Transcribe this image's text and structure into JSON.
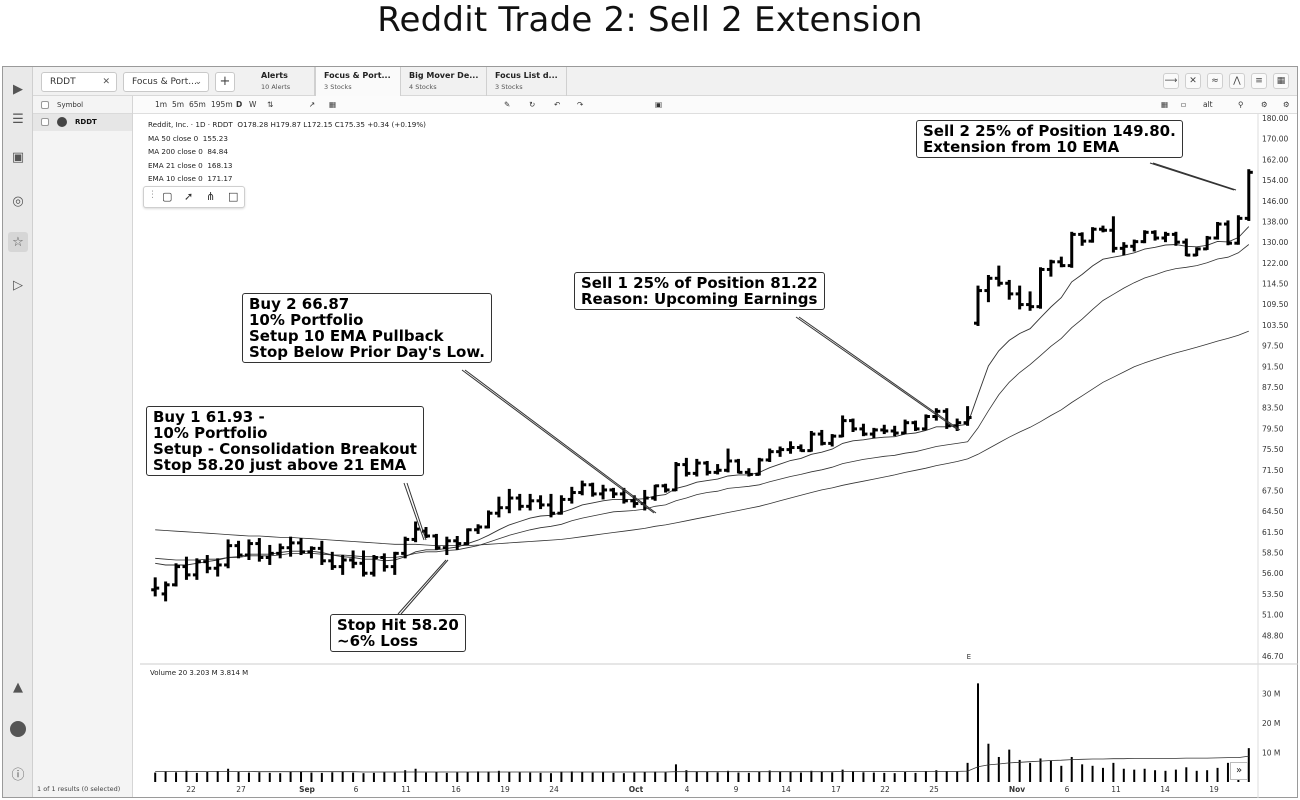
{
  "page_title": "Reddit Trade 2: Sell 2 Extension",
  "tabbar": {
    "symbol_box": "RDDT",
    "watchlist_select": "Focus & Port...",
    "add_label": "+",
    "tabs": [
      {
        "title": "Alerts",
        "sub": "10 Alerts"
      },
      {
        "title": "Focus & Port...",
        "sub": "3 Stocks"
      },
      {
        "title": "Big Mover De...",
        "sub": "4 Stocks"
      },
      {
        "title": "Focus List d...",
        "sub": "3 Stocks"
      }
    ]
  },
  "watchlist": {
    "header": "Symbol",
    "rows": [
      "RDDT"
    ],
    "footer": "1 of 1 results (0 selected)"
  },
  "toolbar": {
    "timeframes": [
      "1m",
      "5m",
      "65m",
      "195m",
      "D",
      "W"
    ],
    "alt_label": "alt"
  },
  "legend": {
    "title": "Reddit, Inc. · 1D · RDDT",
    "ohlc": "O178.28  H179.87  L172.15  C175.35  +0.34 (+0.19%)",
    "lines": [
      {
        "label": "MA 50 close 0",
        "value": "155.23"
      },
      {
        "label": "MA 200 close 0",
        "value": "84.84"
      },
      {
        "label": "EMA 21 close 0",
        "value": "168.13"
      },
      {
        "label": "EMA 10 close 0",
        "value": "171.17"
      }
    ],
    "volume": "Volume 20  3.203 M  3.814 M"
  },
  "annotations": {
    "buy1": [
      "Buy 1 61.93 -",
      "10% Portfolio",
      "Setup - Consolidation Breakout",
      "Stop 58.20 just above 21 EMA"
    ],
    "buy2": [
      "Buy 2 66.87",
      "10% Portfolio",
      "Setup 10 EMA Pullback",
      "Stop Below Prior Day's Low."
    ],
    "sell1": [
      "Sell 1 25% of Position 81.22",
      "Reason: Upcoming Earnings"
    ],
    "sell2": [
      "Sell 2 25% of Position 149.80.",
      "Extension from 10 EMA"
    ],
    "stop": [
      "Stop Hit 58.20",
      "~6% Loss"
    ]
  },
  "earnings_marker": "E",
  "chart_data": {
    "type": "bar",
    "price_axis_ticks": [
      "180.00",
      "170.00",
      "162.00",
      "154.00",
      "146.00",
      "138.00",
      "130.00",
      "122.00",
      "114.50",
      "109.50",
      "103.50",
      "97.50",
      "91.50",
      "87.50",
      "83.50",
      "79.50",
      "75.50",
      "71.50",
      "67.50",
      "64.50",
      "61.50",
      "58.50",
      "56.00",
      "53.50",
      "51.00",
      "48.80",
      "46.70"
    ],
    "volume_axis_ticks": [
      "30 M",
      "20 M",
      "10 M"
    ],
    "x_ticks": [
      "22",
      "27",
      "Sep",
      "6",
      "11",
      "16",
      "19",
      "24",
      "Oct",
      "4",
      "9",
      "14",
      "17",
      "22",
      "25",
      "Nov",
      "6",
      "11",
      "14",
      "19"
    ],
    "ohlc": [
      [
        54.0,
        55.5,
        53.2,
        54.2
      ],
      [
        53.5,
        55.0,
        52.6,
        54.6
      ],
      [
        54.6,
        57.2,
        54.4,
        56.8
      ],
      [
        56.8,
        58.0,
        55.2,
        55.8
      ],
      [
        55.8,
        57.8,
        55.2,
        57.4
      ],
      [
        57.4,
        58.2,
        56.0,
        56.6
      ],
      [
        56.6,
        57.8,
        55.6,
        57.0
      ],
      [
        57.0,
        60.4,
        56.6,
        59.5
      ],
      [
        59.5,
        60.2,
        57.8,
        58.2
      ],
      [
        58.2,
        60.4,
        57.6,
        59.8
      ],
      [
        59.8,
        60.6,
        57.4,
        57.9
      ],
      [
        57.9,
        59.6,
        57.0,
        58.4
      ],
      [
        58.4,
        59.8,
        57.8,
        59.2
      ],
      [
        59.2,
        60.8,
        58.0,
        59.9
      ],
      [
        59.9,
        60.6,
        58.2,
        58.6
      ],
      [
        58.6,
        59.4,
        57.8,
        59.1
      ],
      [
        59.1,
        60.2,
        57.0,
        57.5
      ],
      [
        57.5,
        58.6,
        56.4,
        56.8
      ],
      [
        56.8,
        58.2,
        55.8,
        57.6
      ],
      [
        57.6,
        58.8,
        56.6,
        57.2
      ],
      [
        57.2,
        58.8,
        55.6,
        56.0
      ],
      [
        56.0,
        58.2,
        55.6,
        57.9
      ],
      [
        57.9,
        58.4,
        56.2,
        56.8
      ],
      [
        56.8,
        58.6,
        55.8,
        58.4
      ],
      [
        58.4,
        60.8,
        57.8,
        60.4
      ],
      [
        60.4,
        63.0,
        60.0,
        61.9
      ],
      [
        61.6,
        62.2,
        60.6,
        60.9
      ],
      [
        60.9,
        61.2,
        58.9,
        59.2
      ],
      [
        59.2,
        60.8,
        58.2,
        60.2
      ],
      [
        60.2,
        60.9,
        58.9,
        59.8
      ],
      [
        59.8,
        62.0,
        59.6,
        61.8
      ],
      [
        61.8,
        62.6,
        61.2,
        62.2
      ],
      [
        62.2,
        64.6,
        62.0,
        64.2
      ],
      [
        64.2,
        66.6,
        63.6,
        65.0
      ],
      [
        65.0,
        67.8,
        64.2,
        66.4
      ],
      [
        66.4,
        67.0,
        64.6,
        65.2
      ],
      [
        65.2,
        67.0,
        64.6,
        66.0
      ],
      [
        66.0,
        66.8,
        64.8,
        65.4
      ],
      [
        65.4,
        67.0,
        63.6,
        64.2
      ],
      [
        64.2,
        66.8,
        64.0,
        66.2
      ],
      [
        66.2,
        68.2,
        65.6,
        67.2
      ],
      [
        67.2,
        69.4,
        66.8,
        68.6
      ],
      [
        68.6,
        69.0,
        66.6,
        67.0
      ],
      [
        67.0,
        68.6,
        66.2,
        67.6
      ],
      [
        67.6,
        68.0,
        66.4,
        67.0
      ],
      [
        67.0,
        68.0,
        65.6,
        66.0
      ],
      [
        66.0,
        66.8,
        65.0,
        65.6
      ],
      [
        65.6,
        67.6,
        64.6,
        66.4
      ],
      [
        66.4,
        68.6,
        66.0,
        68.4
      ],
      [
        68.4,
        68.8,
        67.2,
        67.6
      ],
      [
        67.6,
        73.0,
        67.4,
        72.5
      ],
      [
        72.5,
        73.8,
        70.2,
        70.8
      ],
      [
        70.8,
        73.6,
        70.2,
        72.8
      ],
      [
        72.8,
        73.2,
        70.4,
        71.0
      ],
      [
        71.0,
        72.6,
        70.6,
        71.4
      ],
      [
        71.4,
        75.6,
        71.0,
        73.2
      ],
      [
        73.2,
        73.6,
        70.8,
        71.0
      ],
      [
        71.0,
        71.8,
        70.2,
        70.6
      ],
      [
        70.6,
        73.8,
        70.4,
        73.4
      ],
      [
        73.4,
        75.6,
        73.0,
        75.0
      ],
      [
        75.0,
        76.0,
        74.0,
        75.4
      ],
      [
        75.4,
        77.0,
        74.6,
        75.8
      ],
      [
        75.8,
        76.4,
        75.0,
        75.2
      ],
      [
        75.2,
        79.0,
        75.0,
        78.4
      ],
      [
        78.4,
        79.2,
        76.2,
        76.6
      ],
      [
        76.6,
        78.4,
        76.0,
        78.0
      ],
      [
        78.0,
        82.0,
        77.8,
        81.0
      ],
      [
        81.0,
        81.4,
        78.8,
        79.4
      ],
      [
        79.4,
        80.4,
        78.0,
        78.4
      ],
      [
        78.4,
        79.6,
        77.6,
        79.2
      ],
      [
        79.2,
        80.2,
        78.4,
        79.0
      ],
      [
        79.0,
        80.0,
        78.0,
        78.6
      ],
      [
        78.6,
        81.2,
        78.4,
        80.6
      ],
      [
        80.6,
        81.0,
        79.0,
        79.4
      ],
      [
        79.4,
        82.2,
        79.2,
        81.8
      ],
      [
        81.8,
        83.4,
        81.0,
        82.8
      ],
      [
        82.8,
        83.4,
        79.4,
        80.0
      ],
      [
        80.0,
        81.4,
        79.0,
        80.6
      ],
      [
        80.6,
        83.8,
        80.0,
        81.6
      ],
      [
        104.0,
        114.0,
        103.2,
        112.8
      ],
      [
        112.8,
        117.6,
        110.0,
        116.4
      ],
      [
        116.4,
        121.0,
        113.8,
        114.6
      ],
      [
        114.6,
        115.8,
        110.6,
        112.0
      ],
      [
        112.0,
        114.0,
        108.0,
        109.4
      ],
      [
        109.4,
        112.6,
        107.6,
        108.8
      ],
      [
        108.8,
        120.4,
        108.2,
        119.6
      ],
      [
        119.6,
        123.2,
        117.0,
        122.4
      ],
      [
        122.4,
        124.4,
        120.4,
        121.0
      ],
      [
        121.0,
        134.0,
        120.2,
        133.0
      ],
      [
        133.0,
        133.8,
        128.6,
        130.4
      ],
      [
        130.4,
        135.8,
        129.8,
        135.0
      ],
      [
        135.0,
        136.4,
        133.8,
        134.6
      ],
      [
        134.6,
        140.0,
        126.0,
        127.6
      ],
      [
        127.6,
        130.0,
        125.0,
        128.4
      ],
      [
        128.4,
        131.0,
        126.4,
        130.2
      ],
      [
        130.2,
        134.6,
        129.6,
        133.8
      ],
      [
        133.8,
        134.6,
        130.6,
        131.6
      ],
      [
        131.6,
        134.0,
        130.0,
        133.0
      ],
      [
        133.0,
        134.0,
        128.6,
        130.0
      ],
      [
        130.0,
        131.4,
        124.6,
        125.0
      ],
      [
        125.0,
        128.0,
        124.6,
        127.4
      ],
      [
        127.4,
        132.4,
        127.0,
        131.6
      ],
      [
        131.6,
        137.8,
        131.0,
        137.0
      ],
      [
        137.0,
        138.4,
        128.8,
        129.6
      ],
      [
        129.6,
        140.4,
        129.0,
        139.2
      ],
      [
        139.2,
        158.2,
        138.2,
        157.0
      ]
    ],
    "ema10": [
      57.2,
      57.0,
      57.0,
      57.0,
      57.2,
      57.4,
      57.6,
      57.9,
      58.0,
      58.3,
      58.3,
      58.3,
      58.5,
      58.7,
      58.7,
      58.7,
      58.5,
      58.2,
      58.0,
      57.9,
      57.7,
      57.7,
      57.5,
      57.6,
      58.0,
      58.6,
      58.9,
      58.9,
      59.1,
      59.3,
      59.8,
      60.3,
      61.0,
      61.8,
      62.5,
      63.0,
      63.5,
      63.8,
      63.9,
      64.3,
      64.8,
      65.4,
      65.7,
      66.0,
      66.2,
      66.2,
      66.2,
      66.3,
      66.7,
      66.9,
      67.9,
      68.4,
      69.1,
      69.4,
      69.7,
      70.3,
      70.5,
      70.5,
      71.0,
      71.9,
      72.6,
      73.3,
      73.7,
      74.5,
      74.9,
      75.5,
      76.6,
      77.1,
      77.3,
      77.6,
      77.8,
      77.9,
      78.4,
      78.6,
      79.1,
      79.8,
      79.8,
      80.0,
      80.3,
      86.0,
      91.6,
      96.0,
      99.0,
      101.0,
      102.4,
      105.6,
      108.7,
      111.1,
      115.1,
      117.8,
      120.9,
      123.4,
      124.2,
      124.9,
      125.9,
      127.3,
      128.0,
      128.9,
      129.1,
      128.4,
      128.2,
      128.8,
      130.3,
      130.1,
      131.8,
      136.0
    ],
    "ema21": [
      57.8,
      57.7,
      57.6,
      57.6,
      57.6,
      57.7,
      57.7,
      57.9,
      57.9,
      58.1,
      58.1,
      58.1,
      58.2,
      58.4,
      58.4,
      58.4,
      58.3,
      58.2,
      58.2,
      58.1,
      58.0,
      58.0,
      57.9,
      57.9,
      58.1,
      58.4,
      58.6,
      58.6,
      58.8,
      58.9,
      59.2,
      59.5,
      60.0,
      60.5,
      61.0,
      61.4,
      61.8,
      62.1,
      62.3,
      62.6,
      63.1,
      63.5,
      63.8,
      64.1,
      64.4,
      64.5,
      64.6,
      64.8,
      65.2,
      65.4,
      66.0,
      66.4,
      66.9,
      67.2,
      67.4,
      67.9,
      68.1,
      68.3,
      68.6,
      69.2,
      69.7,
      70.2,
      70.6,
      71.1,
      71.5,
      72.0,
      72.7,
      73.1,
      73.5,
      73.8,
      74.1,
      74.3,
      74.7,
      75.0,
      75.5,
      76.0,
      76.3,
      76.6,
      76.9,
      79.6,
      82.9,
      86.0,
      88.4,
      90.3,
      92.0,
      94.6,
      97.3,
      99.6,
      102.7,
      105.2,
      108.0,
      110.4,
      111.9,
      113.4,
      114.8,
      116.5,
      117.7,
      119.0,
      119.9,
      120.4,
      121.0,
      122.0,
      123.5,
      124.2,
      125.9,
      129.1
    ],
    "ma50": [
      61.8,
      61.7,
      61.6,
      61.5,
      61.4,
      61.3,
      61.2,
      61.1,
      61.0,
      60.9,
      60.9,
      60.8,
      60.7,
      60.7,
      60.6,
      60.5,
      60.4,
      60.3,
      60.2,
      60.1,
      60.0,
      59.9,
      59.8,
      59.7,
      59.7,
      59.7,
      59.6,
      59.5,
      59.5,
      59.5,
      59.5,
      59.6,
      59.7,
      59.8,
      59.9,
      60.0,
      60.1,
      60.2,
      60.3,
      60.4,
      60.6,
      60.8,
      61.0,
      61.2,
      61.4,
      61.6,
      61.8,
      62.0,
      62.3,
      62.5,
      62.8,
      63.1,
      63.4,
      63.7,
      64.0,
      64.3,
      64.6,
      64.9,
      65.2,
      65.6,
      66.0,
      66.4,
      66.8,
      67.2,
      67.6,
      68.0,
      68.5,
      68.9,
      69.3,
      69.7,
      70.1,
      70.5,
      71.0,
      71.4,
      71.8,
      72.3,
      72.7,
      73.1,
      73.6,
      74.5,
      75.6,
      76.7,
      77.8,
      78.8,
      79.7,
      80.8,
      82.0,
      83.1,
      84.5,
      85.8,
      87.1,
      88.4,
      89.4,
      90.4,
      91.4,
      92.5,
      93.5,
      94.5,
      95.4,
      96.2,
      97.0,
      97.9,
      98.8,
      99.6,
      100.5,
      101.7
    ],
    "volume": [
      3.2,
      3.5,
      3.3,
      3.8,
      3.1,
      3.4,
      3.6,
      4.5,
      3.4,
      3.2,
      3.3,
      3.1,
      3.0,
      3.5,
      3.4,
      3.2,
      3.1,
      3.3,
      3.6,
      3.2,
      3.0,
      3.1,
      3.3,
      3.2,
      4.0,
      4.5,
      3.2,
      3.4,
      3.1,
      3.3,
      3.4,
      3.6,
      3.5,
      3.8,
      3.4,
      3.3,
      3.2,
      3.1,
      3.0,
      3.5,
      3.6,
      3.4,
      3.2,
      3.3,
      3.1,
      3.0,
      3.2,
      3.4,
      3.5,
      3.3,
      6.0,
      4.0,
      3.6,
      3.5,
      3.3,
      3.8,
      3.2,
      3.1,
      3.5,
      3.9,
      3.6,
      3.5,
      3.2,
      3.8,
      3.4,
      3.3,
      4.2,
      3.5,
      3.3,
      3.2,
      3.1,
      3.0,
      3.4,
      3.1,
      3.6,
      4.0,
      3.7,
      3.5,
      6.5,
      33.5,
      13.0,
      8.5,
      11.0,
      7.5,
      6.5,
      8.0,
      7.2,
      5.5,
      8.5,
      6.0,
      5.5,
      4.8,
      6.5,
      4.5,
      4.2,
      4.5,
      4.0,
      3.8,
      4.2,
      5.0,
      3.8,
      4.0,
      4.8,
      6.5,
      4.5,
      11.5
    ],
    "volume_ma": [
      3.6,
      3.6,
      3.6,
      3.6,
      3.6,
      3.6,
      3.6,
      3.6,
      3.6,
      3.6,
      3.5,
      3.5,
      3.5,
      3.5,
      3.5,
      3.5,
      3.5,
      3.5,
      3.5,
      3.5,
      3.4,
      3.4,
      3.4,
      3.4,
      3.4,
      3.4,
      3.4,
      3.4,
      3.4,
      3.4,
      3.4,
      3.4,
      3.4,
      3.4,
      3.4,
      3.4,
      3.4,
      3.4,
      3.4,
      3.4,
      3.4,
      3.4,
      3.4,
      3.4,
      3.4,
      3.4,
      3.4,
      3.4,
      3.4,
      3.4,
      3.5,
      3.5,
      3.5,
      3.5,
      3.5,
      3.5,
      3.5,
      3.5,
      3.5,
      3.5,
      3.5,
      3.5,
      3.5,
      3.5,
      3.5,
      3.5,
      3.6,
      3.6,
      3.6,
      3.6,
      3.6,
      3.6,
      3.6,
      3.6,
      3.6,
      3.6,
      3.6,
      3.6,
      3.7,
      5.2,
      5.8,
      6.1,
      6.5,
      6.7,
      6.9,
      7.1,
      7.3,
      7.4,
      7.6,
      7.7,
      7.8,
      7.8,
      7.9,
      7.9,
      8.0,
      8.0,
      8.0,
      8.0,
      8.0,
      8.1,
      8.1,
      8.1,
      8.2,
      8.3,
      8.3,
      8.8
    ],
    "colors": {
      "bars": "#000000",
      "lines": "#333333",
      "grid": "#f2f2f2"
    }
  }
}
